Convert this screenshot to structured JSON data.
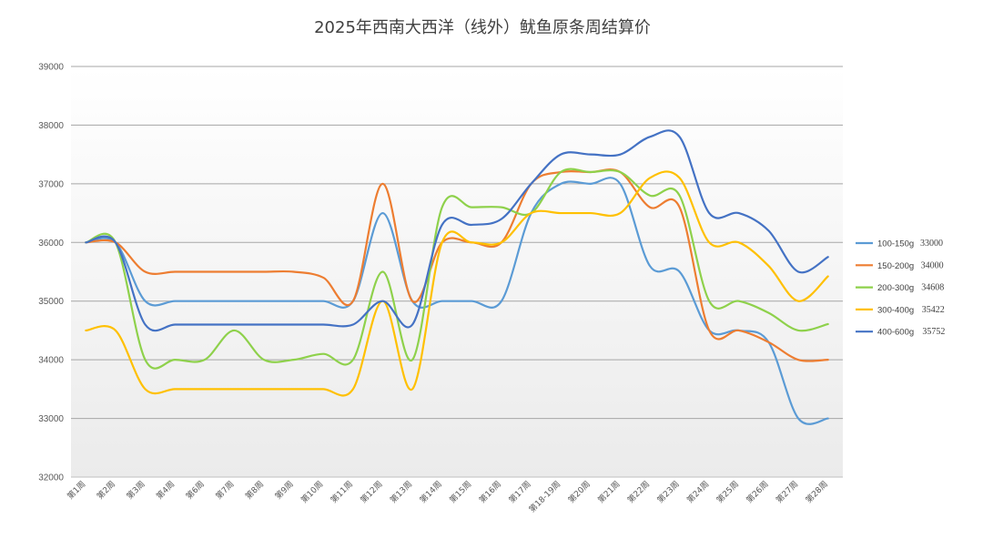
{
  "chart_data": {
    "type": "line",
    "title": "2025年西南大西洋（线外）鱿鱼原条周结算价",
    "xlabel": "",
    "ylabel": "",
    "ylim": [
      32000,
      39000
    ],
    "yticks": [
      32000,
      33000,
      34000,
      35000,
      36000,
      37000,
      38000,
      39000
    ],
    "grid": true,
    "legend_position": "right",
    "categories": [
      "第1周",
      "第2周",
      "第3周",
      "第4周",
      "第6周",
      "第7周",
      "第8周",
      "第9周",
      "第10周",
      "第11周",
      "第12周",
      "第13周",
      "第14周",
      "第15周",
      "第16周",
      "第17周",
      "第18-19周",
      "第20周",
      "第21周",
      "第22周",
      "第23周",
      "第24周",
      "第25周",
      "第26周",
      "第27周",
      "第28周"
    ],
    "series": [
      {
        "name": "100-150g",
        "label_value": "33000",
        "color": "#5B9BD5",
        "values": [
          36000,
          36000,
          35000,
          35000,
          35000,
          35000,
          35000,
          35000,
          35000,
          35000,
          36500,
          35000,
          35000,
          35000,
          35000,
          36500,
          37000,
          37000,
          37000,
          35600,
          35500,
          34500,
          34500,
          34300,
          33000,
          33000
        ]
      },
      {
        "name": "150-200g",
        "label_value": "34000",
        "color": "#ED7D31",
        "values": [
          36000,
          36000,
          35500,
          35500,
          35500,
          35500,
          35500,
          35500,
          35400,
          35000,
          37000,
          35000,
          36000,
          36000,
          36000,
          37000,
          37200,
          37200,
          37200,
          36600,
          36600,
          34500,
          34500,
          34300,
          34000,
          34000
        ]
      },
      {
        "name": "200-300g",
        "label_value": "34608",
        "color": "#8ED14B",
        "values": [
          36000,
          36000,
          34000,
          34000,
          34000,
          34500,
          34000,
          34000,
          34100,
          34000,
          35500,
          34000,
          36600,
          36600,
          36600,
          36500,
          37200,
          37200,
          37200,
          36800,
          36800,
          35000,
          35000,
          34800,
          34500,
          34608
        ]
      },
      {
        "name": "300-400g",
        "label_value": "35422",
        "color": "#FFC000",
        "values": [
          34500,
          34500,
          33500,
          33500,
          33500,
          33500,
          33500,
          33500,
          33500,
          33500,
          35000,
          33500,
          36000,
          36000,
          36000,
          36500,
          36500,
          36500,
          36500,
          37100,
          37100,
          36000,
          36000,
          35600,
          35000,
          35422
        ]
      },
      {
        "name": "400-600g",
        "label_value": "35752",
        "color": "#4472C4",
        "values": [
          36000,
          36000,
          34600,
          34600,
          34600,
          34600,
          34600,
          34600,
          34600,
          34600,
          35000,
          34600,
          36300,
          36300,
          36400,
          37000,
          37500,
          37500,
          37500,
          37800,
          37800,
          36500,
          36500,
          36200,
          35500,
          35752
        ]
      }
    ]
  }
}
